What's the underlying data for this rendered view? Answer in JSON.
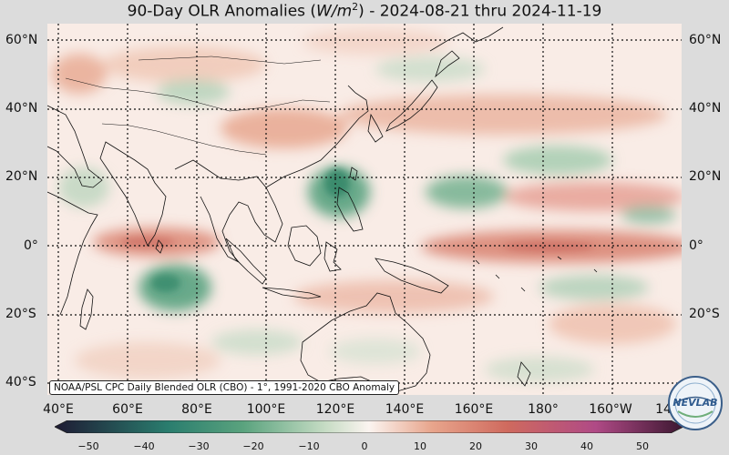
{
  "header": {
    "title_prefix": "90-Day OLR Anomalies (",
    "unit_base": "W/m",
    "unit_exp": "2",
    "title_suffix": ") - 2024-08-21 thru 2024-11-19"
  },
  "map": {
    "lat_labels": [
      "60°N",
      "40°N",
      "20°N",
      "0°",
      "20°S",
      "40°S"
    ],
    "lon_labels": [
      "40°E",
      "60°E",
      "80°E",
      "100°E",
      "120°E",
      "140°E",
      "160°E",
      "180°",
      "160°W",
      "14"
    ],
    "credit": "NOAA/PSL CPC Daily Blended OLR (CBO) - 1°, 1991-2020 CBO Anomaly"
  },
  "colorbar": {
    "ticks": [
      "−50",
      "−40",
      "−30",
      "−20",
      "−10",
      "0",
      "10",
      "20",
      "30",
      "40",
      "50"
    ],
    "colors": {
      "min": "#1e1a33",
      "teal": "#2a7d6e",
      "green": "#5aa37e",
      "light_green": "#c6dcc4",
      "neutral": "#fbf4f0",
      "salmon": "#e8a58c",
      "red": "#cf6a5e",
      "magenta": "#b04a86",
      "max": "#3b1730"
    }
  },
  "logo": {
    "text": "NEVLAB"
  }
}
